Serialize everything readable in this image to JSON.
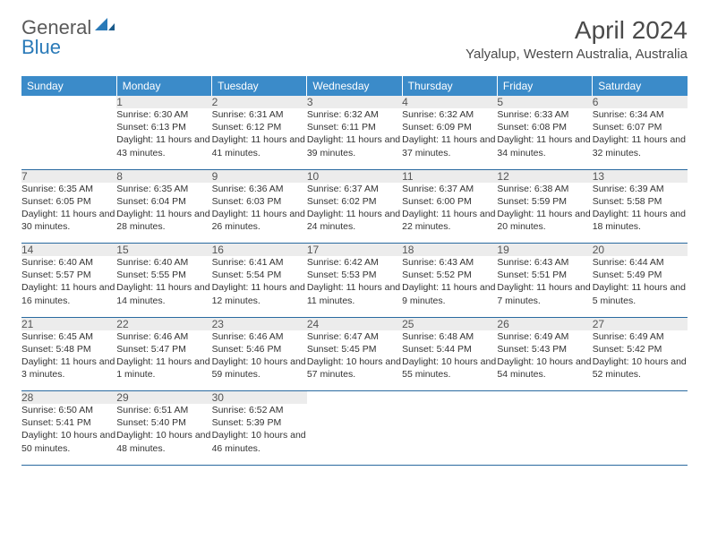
{
  "brand": {
    "general": "General",
    "blue": "Blue"
  },
  "title": "April 2024",
  "location": "Yalyalup, Western Australia, Australia",
  "colors": {
    "header_bg": "#3b8bc9",
    "header_text": "#ffffff",
    "daynum_bg": "#ececec",
    "rule": "#2a6aa0"
  },
  "dayHeaders": [
    "Sunday",
    "Monday",
    "Tuesday",
    "Wednesday",
    "Thursday",
    "Friday",
    "Saturday"
  ],
  "weeks": [
    {
      "nums": [
        "",
        "1",
        "2",
        "3",
        "4",
        "5",
        "6"
      ],
      "cells": [
        {
          "empty": true
        },
        {
          "sunrise": "Sunrise: 6:30 AM",
          "sunset": "Sunset: 6:13 PM",
          "daylight": "Daylight: 11 hours and 43 minutes."
        },
        {
          "sunrise": "Sunrise: 6:31 AM",
          "sunset": "Sunset: 6:12 PM",
          "daylight": "Daylight: 11 hours and 41 minutes."
        },
        {
          "sunrise": "Sunrise: 6:32 AM",
          "sunset": "Sunset: 6:11 PM",
          "daylight": "Daylight: 11 hours and 39 minutes."
        },
        {
          "sunrise": "Sunrise: 6:32 AM",
          "sunset": "Sunset: 6:09 PM",
          "daylight": "Daylight: 11 hours and 37 minutes."
        },
        {
          "sunrise": "Sunrise: 6:33 AM",
          "sunset": "Sunset: 6:08 PM",
          "daylight": "Daylight: 11 hours and 34 minutes."
        },
        {
          "sunrise": "Sunrise: 6:34 AM",
          "sunset": "Sunset: 6:07 PM",
          "daylight": "Daylight: 11 hours and 32 minutes."
        }
      ]
    },
    {
      "nums": [
        "7",
        "8",
        "9",
        "10",
        "11",
        "12",
        "13"
      ],
      "cells": [
        {
          "sunrise": "Sunrise: 6:35 AM",
          "sunset": "Sunset: 6:05 PM",
          "daylight": "Daylight: 11 hours and 30 minutes."
        },
        {
          "sunrise": "Sunrise: 6:35 AM",
          "sunset": "Sunset: 6:04 PM",
          "daylight": "Daylight: 11 hours and 28 minutes."
        },
        {
          "sunrise": "Sunrise: 6:36 AM",
          "sunset": "Sunset: 6:03 PM",
          "daylight": "Daylight: 11 hours and 26 minutes."
        },
        {
          "sunrise": "Sunrise: 6:37 AM",
          "sunset": "Sunset: 6:02 PM",
          "daylight": "Daylight: 11 hours and 24 minutes."
        },
        {
          "sunrise": "Sunrise: 6:37 AM",
          "sunset": "Sunset: 6:00 PM",
          "daylight": "Daylight: 11 hours and 22 minutes."
        },
        {
          "sunrise": "Sunrise: 6:38 AM",
          "sunset": "Sunset: 5:59 PM",
          "daylight": "Daylight: 11 hours and 20 minutes."
        },
        {
          "sunrise": "Sunrise: 6:39 AM",
          "sunset": "Sunset: 5:58 PM",
          "daylight": "Daylight: 11 hours and 18 minutes."
        }
      ]
    },
    {
      "nums": [
        "14",
        "15",
        "16",
        "17",
        "18",
        "19",
        "20"
      ],
      "cells": [
        {
          "sunrise": "Sunrise: 6:40 AM",
          "sunset": "Sunset: 5:57 PM",
          "daylight": "Daylight: 11 hours and 16 minutes."
        },
        {
          "sunrise": "Sunrise: 6:40 AM",
          "sunset": "Sunset: 5:55 PM",
          "daylight": "Daylight: 11 hours and 14 minutes."
        },
        {
          "sunrise": "Sunrise: 6:41 AM",
          "sunset": "Sunset: 5:54 PM",
          "daylight": "Daylight: 11 hours and 12 minutes."
        },
        {
          "sunrise": "Sunrise: 6:42 AM",
          "sunset": "Sunset: 5:53 PM",
          "daylight": "Daylight: 11 hours and 11 minutes."
        },
        {
          "sunrise": "Sunrise: 6:43 AM",
          "sunset": "Sunset: 5:52 PM",
          "daylight": "Daylight: 11 hours and 9 minutes."
        },
        {
          "sunrise": "Sunrise: 6:43 AM",
          "sunset": "Sunset: 5:51 PM",
          "daylight": "Daylight: 11 hours and 7 minutes."
        },
        {
          "sunrise": "Sunrise: 6:44 AM",
          "sunset": "Sunset: 5:49 PM",
          "daylight": "Daylight: 11 hours and 5 minutes."
        }
      ]
    },
    {
      "nums": [
        "21",
        "22",
        "23",
        "24",
        "25",
        "26",
        "27"
      ],
      "cells": [
        {
          "sunrise": "Sunrise: 6:45 AM",
          "sunset": "Sunset: 5:48 PM",
          "daylight": "Daylight: 11 hours and 3 minutes."
        },
        {
          "sunrise": "Sunrise: 6:46 AM",
          "sunset": "Sunset: 5:47 PM",
          "daylight": "Daylight: 11 hours and 1 minute."
        },
        {
          "sunrise": "Sunrise: 6:46 AM",
          "sunset": "Sunset: 5:46 PM",
          "daylight": "Daylight: 10 hours and 59 minutes."
        },
        {
          "sunrise": "Sunrise: 6:47 AM",
          "sunset": "Sunset: 5:45 PM",
          "daylight": "Daylight: 10 hours and 57 minutes."
        },
        {
          "sunrise": "Sunrise: 6:48 AM",
          "sunset": "Sunset: 5:44 PM",
          "daylight": "Daylight: 10 hours and 55 minutes."
        },
        {
          "sunrise": "Sunrise: 6:49 AM",
          "sunset": "Sunset: 5:43 PM",
          "daylight": "Daylight: 10 hours and 54 minutes."
        },
        {
          "sunrise": "Sunrise: 6:49 AM",
          "sunset": "Sunset: 5:42 PM",
          "daylight": "Daylight: 10 hours and 52 minutes."
        }
      ]
    },
    {
      "nums": [
        "28",
        "29",
        "30",
        "",
        "",
        "",
        ""
      ],
      "cells": [
        {
          "sunrise": "Sunrise: 6:50 AM",
          "sunset": "Sunset: 5:41 PM",
          "daylight": "Daylight: 10 hours and 50 minutes."
        },
        {
          "sunrise": "Sunrise: 6:51 AM",
          "sunset": "Sunset: 5:40 PM",
          "daylight": "Daylight: 10 hours and 48 minutes."
        },
        {
          "sunrise": "Sunrise: 6:52 AM",
          "sunset": "Sunset: 5:39 PM",
          "daylight": "Daylight: 10 hours and 46 minutes."
        },
        {
          "empty": true
        },
        {
          "empty": true
        },
        {
          "empty": true
        },
        {
          "empty": true
        }
      ]
    }
  ]
}
